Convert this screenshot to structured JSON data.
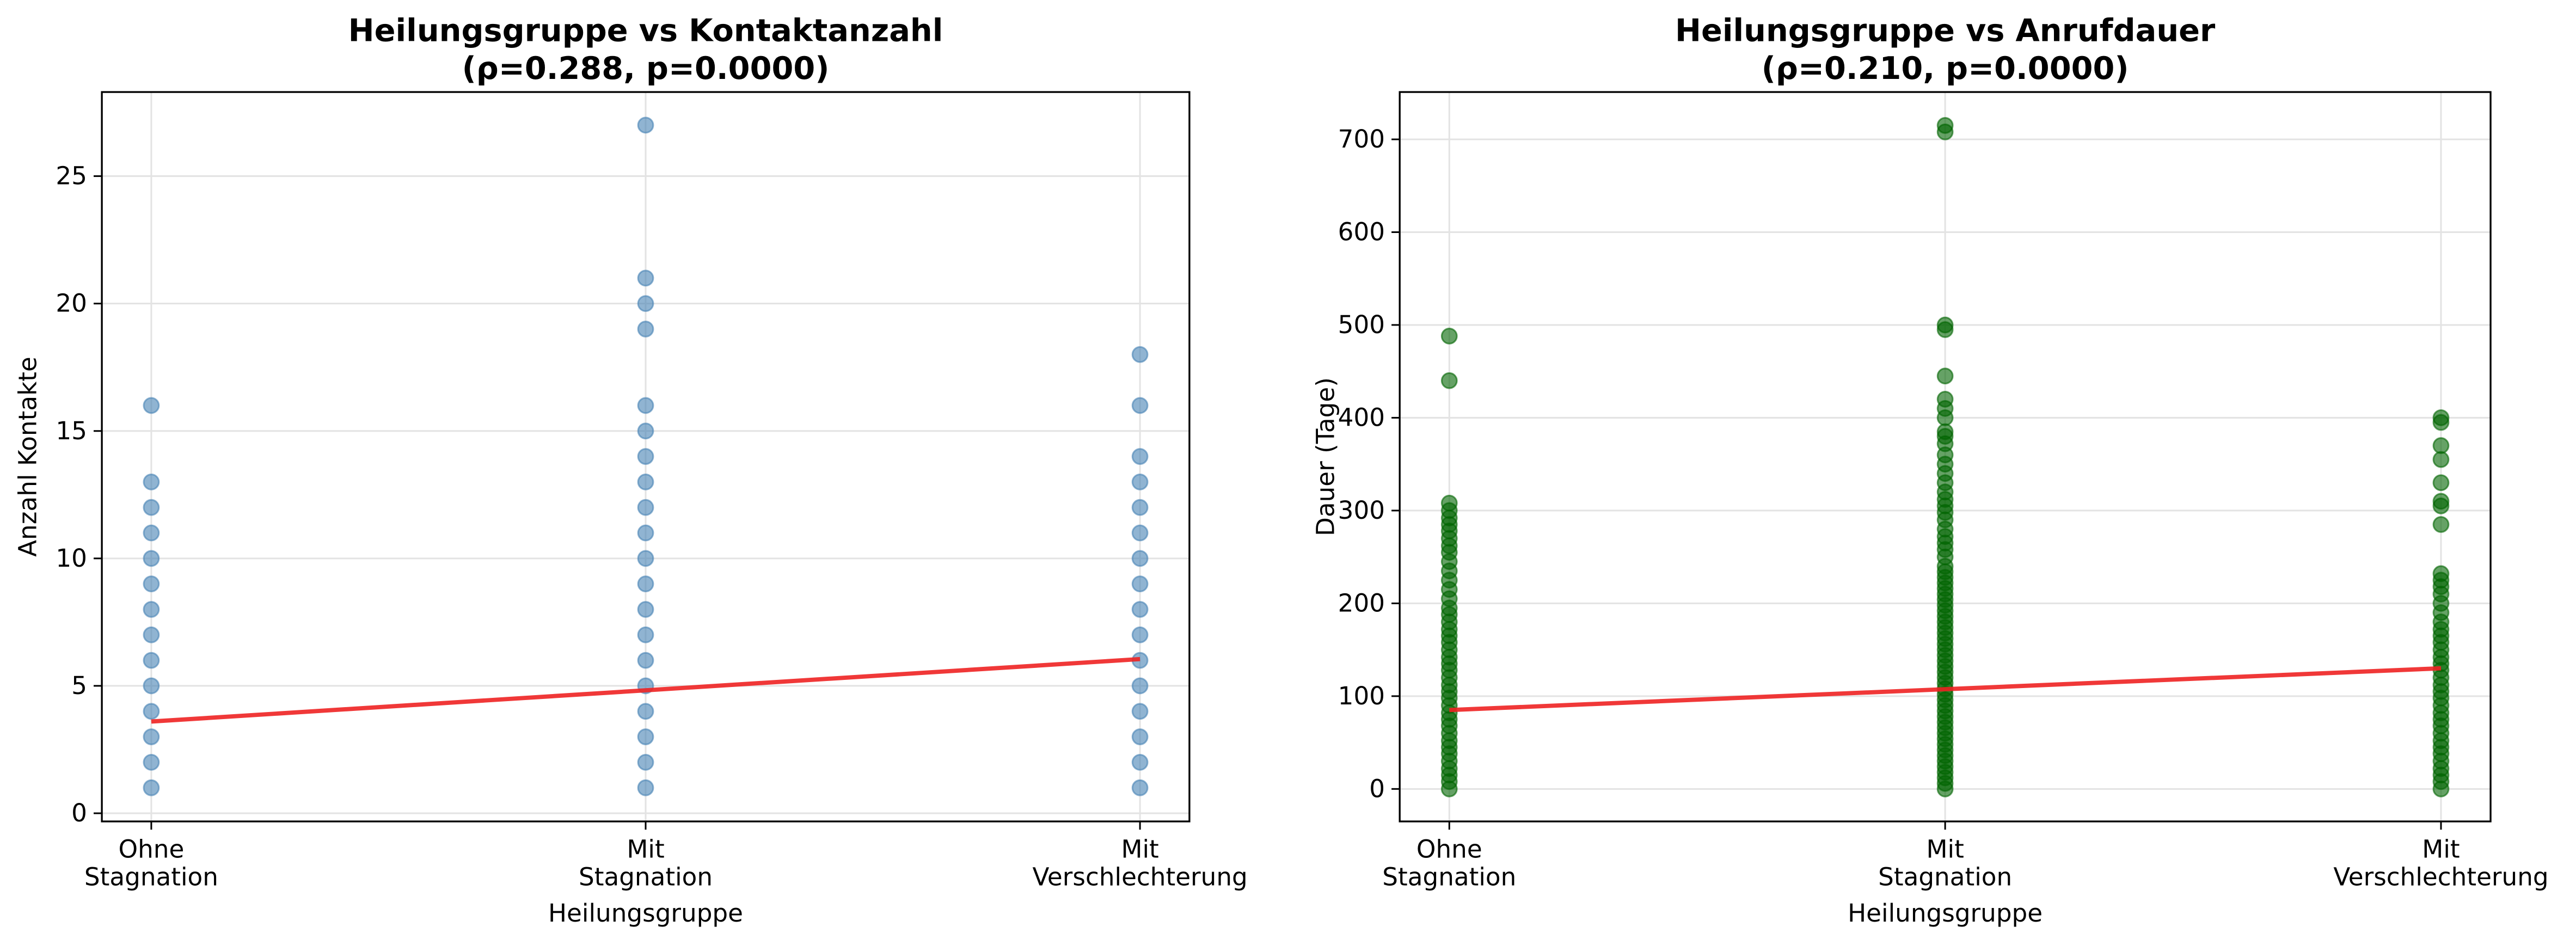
{
  "chart_data": [
    {
      "type": "scatter",
      "title": "Heilungsgruppe vs Kontaktanzahl\n(ρ=0.288, p=0.0000)",
      "x_label": "Heilungsgruppe",
      "y_label": "Anzahl Kontakte",
      "xlim": [
        -0.1,
        2.1
      ],
      "ylim": [
        -0.32,
        28.3
      ],
      "xticks": [
        {
          "value": 0,
          "label": "Ohne\nStagnation"
        },
        {
          "value": 1,
          "label": "Mit\nStagnation"
        },
        {
          "value": 2,
          "label": "Mit\nVerschlechterung"
        }
      ],
      "yticks": [
        0,
        5,
        10,
        15,
        20,
        25
      ],
      "grid": true,
      "series": [
        {
          "color": "#4682b4",
          "x": 0,
          "values": [
            1,
            2,
            3,
            4,
            5,
            6,
            7,
            8,
            9,
            10,
            11,
            12,
            13,
            16
          ]
        },
        {
          "color": "#4682b4",
          "x": 1,
          "values": [
            1,
            2,
            3,
            4,
            5,
            6,
            7,
            8,
            9,
            10,
            11,
            12,
            13,
            14,
            15,
            16,
            19,
            20,
            21,
            27
          ]
        },
        {
          "color": "#4682b4",
          "x": 2,
          "values": [
            1,
            2,
            3,
            4,
            5,
            6,
            7,
            8,
            9,
            10,
            11,
            12,
            13,
            14,
            16,
            18
          ]
        }
      ],
      "trend": {
        "color": "#ee2222",
        "x": [
          0,
          2
        ],
        "values": [
          3.6,
          6.05
        ]
      }
    },
    {
      "type": "scatter",
      "title": "Heilungsgruppe vs Anrufdauer\n(ρ=0.210, p=0.0000)",
      "x_label": "Heilungsgruppe",
      "y_label": "Dauer (Tage)",
      "xlim": [
        -0.1,
        2.1
      ],
      "ylim": [
        -35,
        751
      ],
      "xticks": [
        {
          "value": 0,
          "label": "Ohne\nStagnation"
        },
        {
          "value": 1,
          "label": "Mit\nStagnation"
        },
        {
          "value": 2,
          "label": "Mit\nVerschlechterung"
        }
      ],
      "yticks": [
        0,
        100,
        200,
        300,
        400,
        500,
        600,
        700
      ],
      "grid": true,
      "series": [
        {
          "color": "#006400",
          "x": 0,
          "values": [
            0,
            8,
            15,
            22,
            30,
            38,
            45,
            52,
            60,
            68,
            75,
            82,
            90,
            98,
            105,
            112,
            120,
            128,
            135,
            142,
            150,
            158,
            165,
            172,
            180,
            188,
            195,
            205,
            215,
            225,
            235,
            245,
            255,
            262,
            270,
            278,
            285,
            292,
            300,
            308,
            440,
            488
          ]
        },
        {
          "color": "#006400",
          "x": 1,
          "values": [
            0,
            6,
            12,
            18,
            24,
            30,
            36,
            42,
            48,
            54,
            60,
            66,
            72,
            78,
            84,
            90,
            96,
            102,
            108,
            114,
            120,
            126,
            132,
            138,
            144,
            150,
            156,
            162,
            168,
            174,
            180,
            186,
            192,
            198,
            204,
            210,
            216,
            222,
            228,
            234,
            240,
            250,
            258,
            265,
            272,
            280,
            290,
            298,
            305,
            312,
            320,
            330,
            340,
            350,
            360,
            372,
            380,
            385,
            400,
            410,
            420,
            445,
            495,
            500,
            708,
            715
          ]
        },
        {
          "color": "#006400",
          "x": 2,
          "values": [
            0,
            8,
            15,
            22,
            30,
            38,
            45,
            52,
            60,
            68,
            75,
            82,
            90,
            98,
            105,
            112,
            120,
            128,
            135,
            142,
            150,
            158,
            165,
            172,
            180,
            190,
            200,
            210,
            218,
            225,
            232,
            285,
            305,
            310,
            330,
            355,
            370,
            395,
            400
          ]
        }
      ],
      "trend": {
        "color": "#ee2222",
        "x": [
          0,
          2
        ],
        "values": [
          85,
          130
        ]
      }
    }
  ]
}
